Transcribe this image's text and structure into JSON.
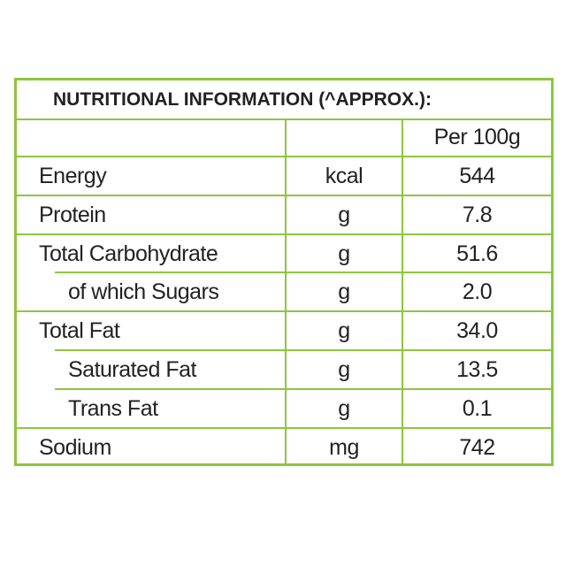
{
  "header": {
    "title": "NUTRITIONAL INFORMATION (^APPROX.):",
    "column": "Per 100g"
  },
  "table": {
    "rows": [
      [
        "Energy",
        "kcal",
        "544"
      ],
      [
        "Protein",
        "g",
        "7.8"
      ],
      [
        "Total Carbohydrate",
        "g",
        "51.6"
      ],
      [
        "of which Sugars",
        "g",
        "2.0"
      ],
      [
        "Total Fat",
        "g",
        "34.0"
      ],
      [
        "Saturated Fat",
        "g",
        "13.5"
      ],
      [
        "Trans Fat",
        "g",
        "0.1"
      ],
      [
        "Sodium",
        "mg",
        "742"
      ]
    ]
  }
}
